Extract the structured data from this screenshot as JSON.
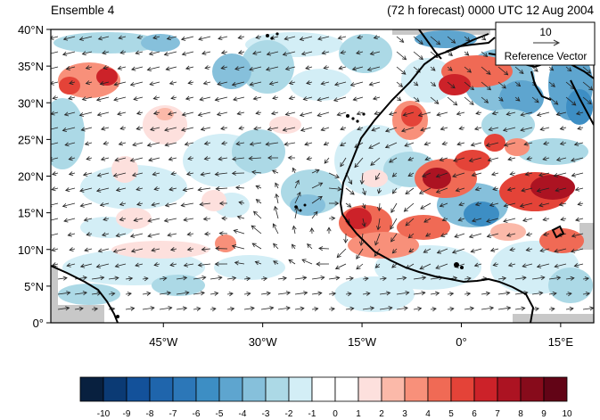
{
  "header": {
    "left_title": "Ensemble 4",
    "right_title": "(72 h forecast) 0000 UTC 12 Aug 2004"
  },
  "reference_vector": {
    "magnitude": "10",
    "label": "Reference Vector"
  },
  "axes": {
    "lat_ticks": [
      "40°N",
      "35°N",
      "30°N",
      "25°N",
      "20°N",
      "15°N",
      "10°N",
      "5°N",
      "0°"
    ],
    "lon_ticks": [
      "45°W",
      "30°W",
      "15°W",
      "0°",
      "15°E"
    ],
    "lat_range": [
      0,
      40
    ],
    "lon_range": [
      -62,
      20
    ]
  },
  "colorbar": {
    "labels": [
      "-10",
      "-9",
      "-8",
      "-7",
      "-6",
      "-5",
      "-4",
      "-3",
      "-2",
      "-1",
      "0",
      "1",
      "2",
      "3",
      "4",
      "5",
      "6",
      "7",
      "8",
      "9",
      "10"
    ],
    "colors": [
      "#08203f",
      "#0b3a74",
      "#13519a",
      "#1f65ac",
      "#2c77b8",
      "#3d8ec4",
      "#5ea5cf",
      "#86c0db",
      "#acd9e6",
      "#d3eef6",
      "#ffffff",
      "#ffffff",
      "#fde0dd",
      "#fbb9a9",
      "#f8907a",
      "#f06a55",
      "#e44338",
      "#cc2229",
      "#ac1322",
      "#870b1b",
      "#620416"
    ]
  },
  "styles": {
    "land_fill": "#c8c8c8",
    "coast_color": "#000000",
    "vector_color": "#222222"
  }
}
